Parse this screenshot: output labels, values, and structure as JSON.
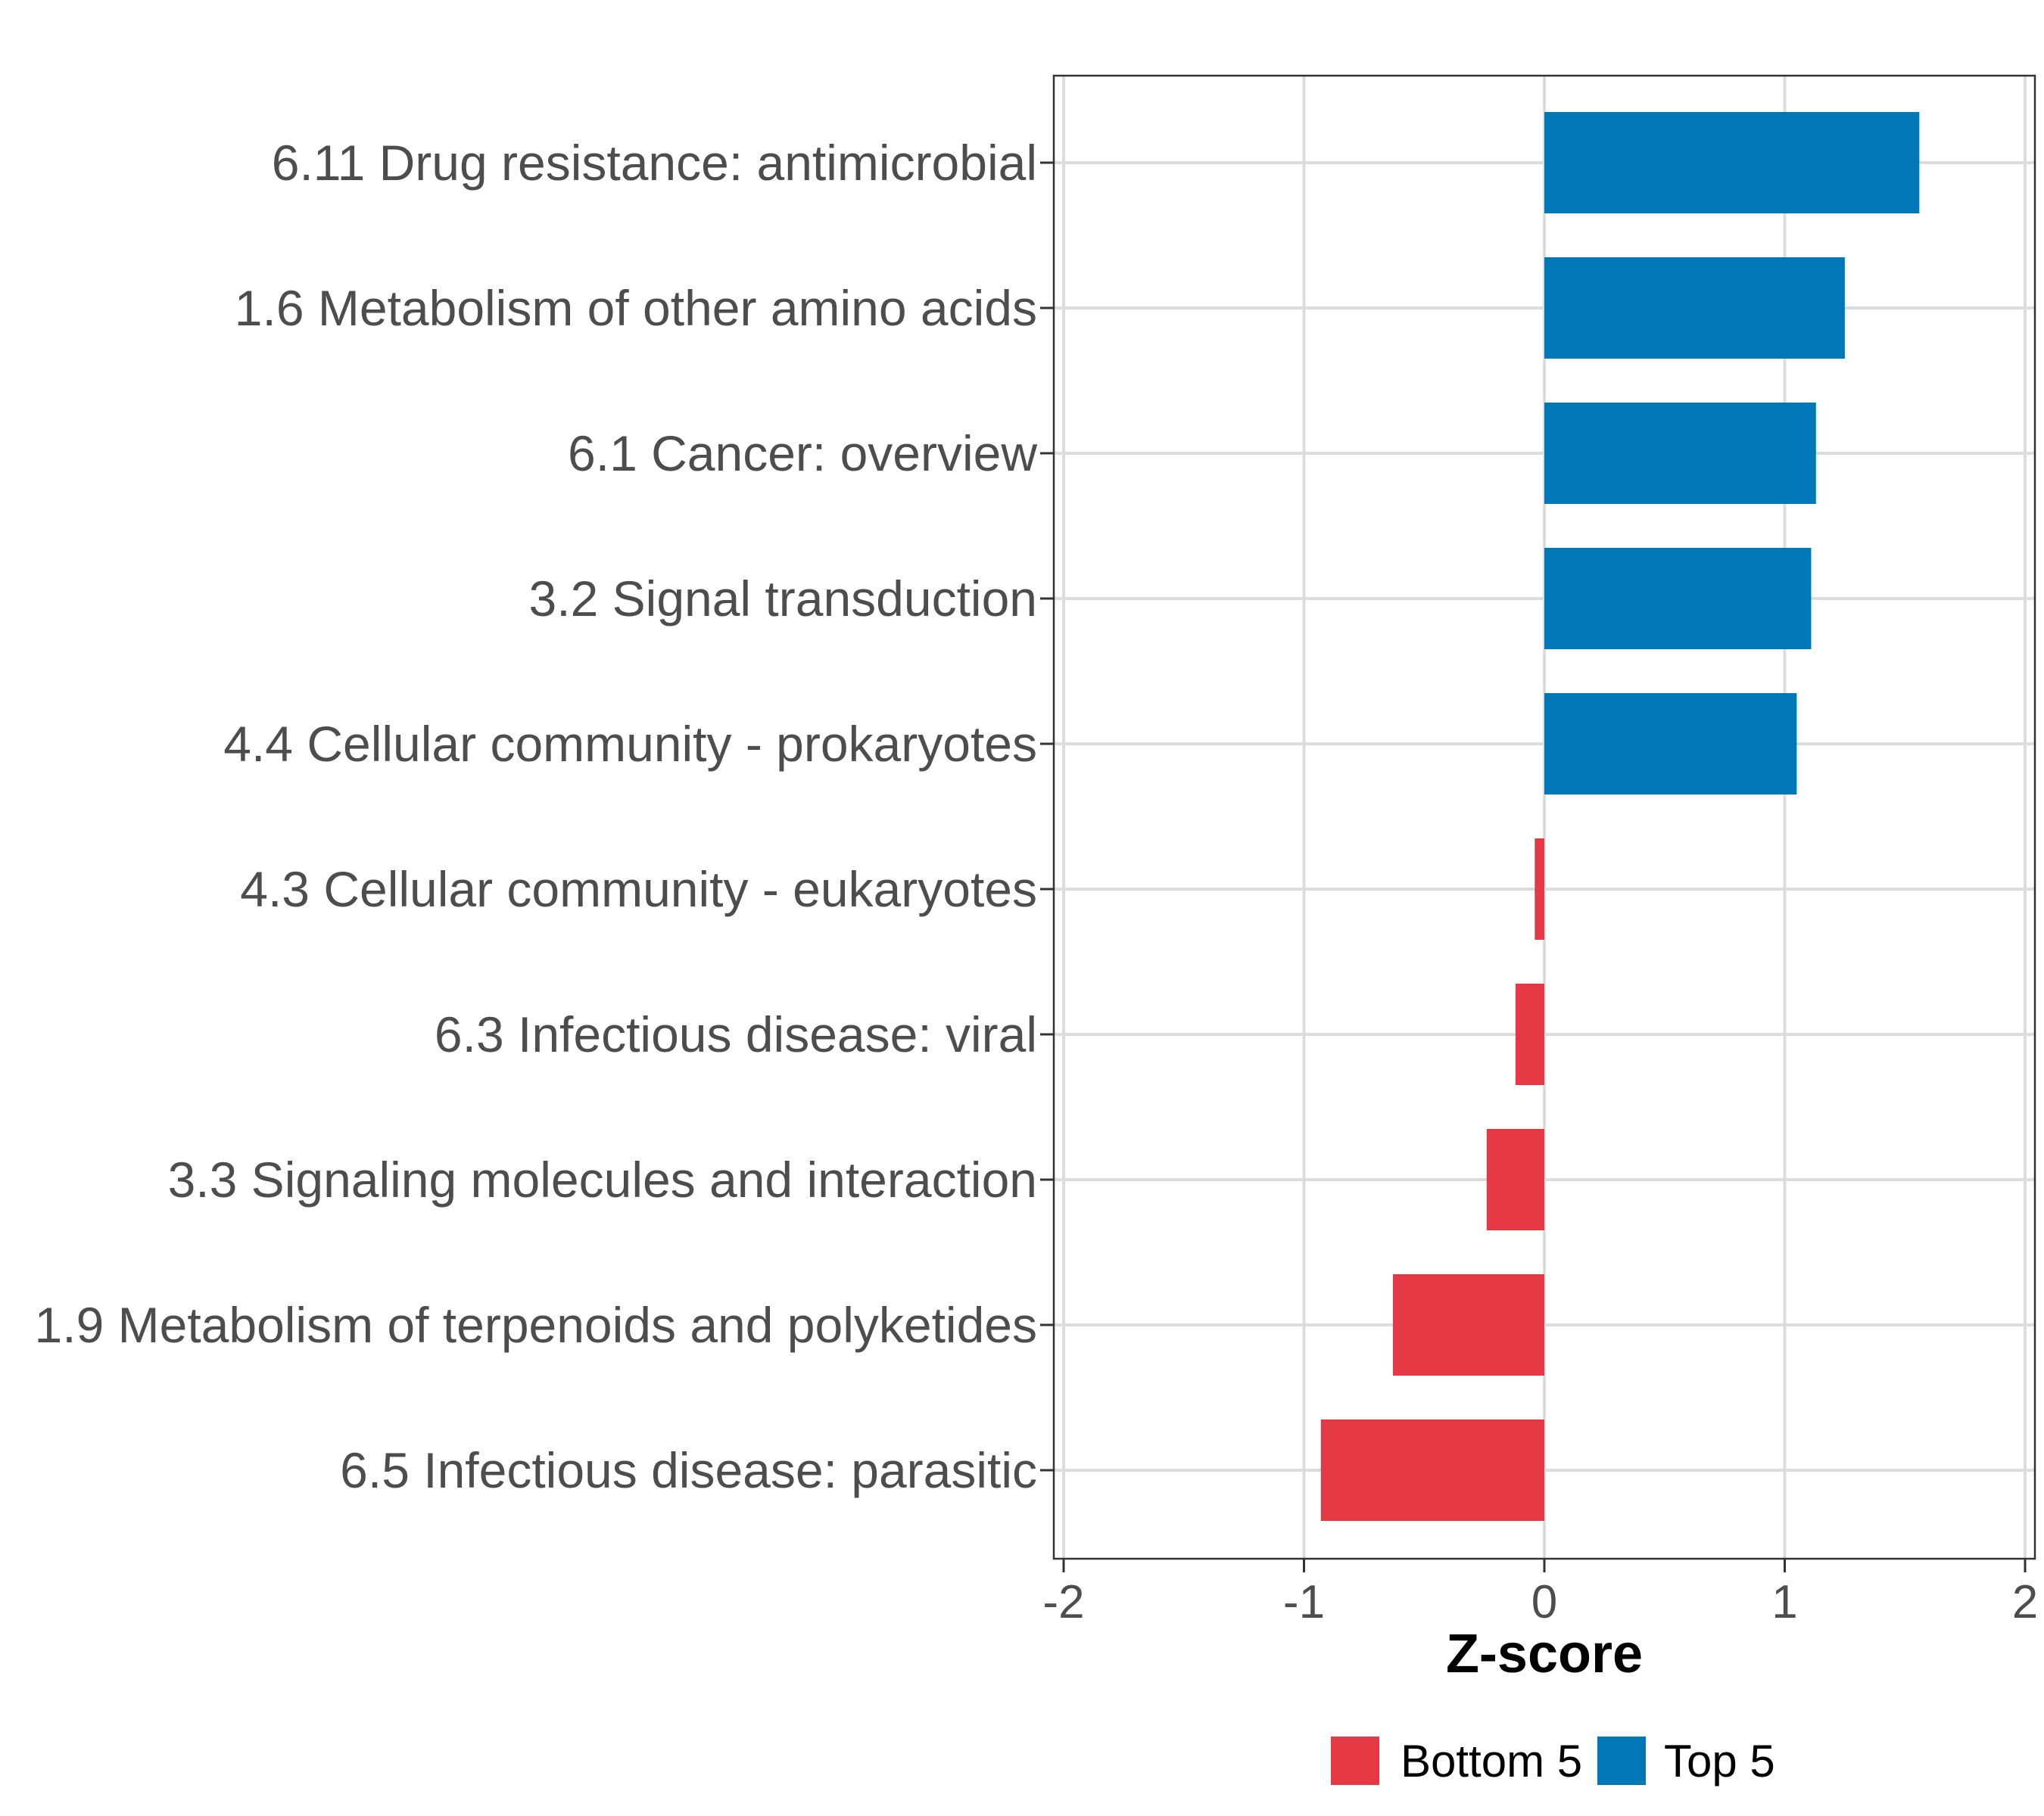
{
  "chart_data": {
    "type": "bar",
    "orientation": "horizontal",
    "title": "",
    "xlabel": "Z-score",
    "ylabel": "",
    "xlim": [
      -2,
      2
    ],
    "xticks": [
      "-2",
      "-1",
      "0",
      "1",
      "2"
    ],
    "grid": true,
    "categories": [
      "6.11 Drug resistance: antimicrobial",
      "1.6 Metabolism of other amino acids",
      "6.1 Cancer: overview",
      "3.2 Signal transduction",
      "4.4 Cellular community - prokaryotes",
      "4.3 Cellular community - eukaryotes",
      "6.3 Infectious disease: viral",
      "3.3 Signaling molecules and interaction",
      "1.9 Metabolism of terpenoids and polyketides",
      "6.5 Infectious disease: parasitic"
    ],
    "values": [
      1.56,
      1.25,
      1.13,
      1.11,
      1.05,
      -0.04,
      -0.12,
      -0.24,
      -0.63,
      -0.93
    ],
    "groups": [
      "Top 5",
      "Top 5",
      "Top 5",
      "Top 5",
      "Top 5",
      "Bottom 5",
      "Bottom 5",
      "Bottom 5",
      "Bottom 5",
      "Bottom 5"
    ],
    "legend": [
      {
        "name": "Bottom 5",
        "color": "#E63946"
      },
      {
        "name": "Top 5",
        "color": "#0077B6"
      }
    ],
    "legend_position": "bottom"
  }
}
